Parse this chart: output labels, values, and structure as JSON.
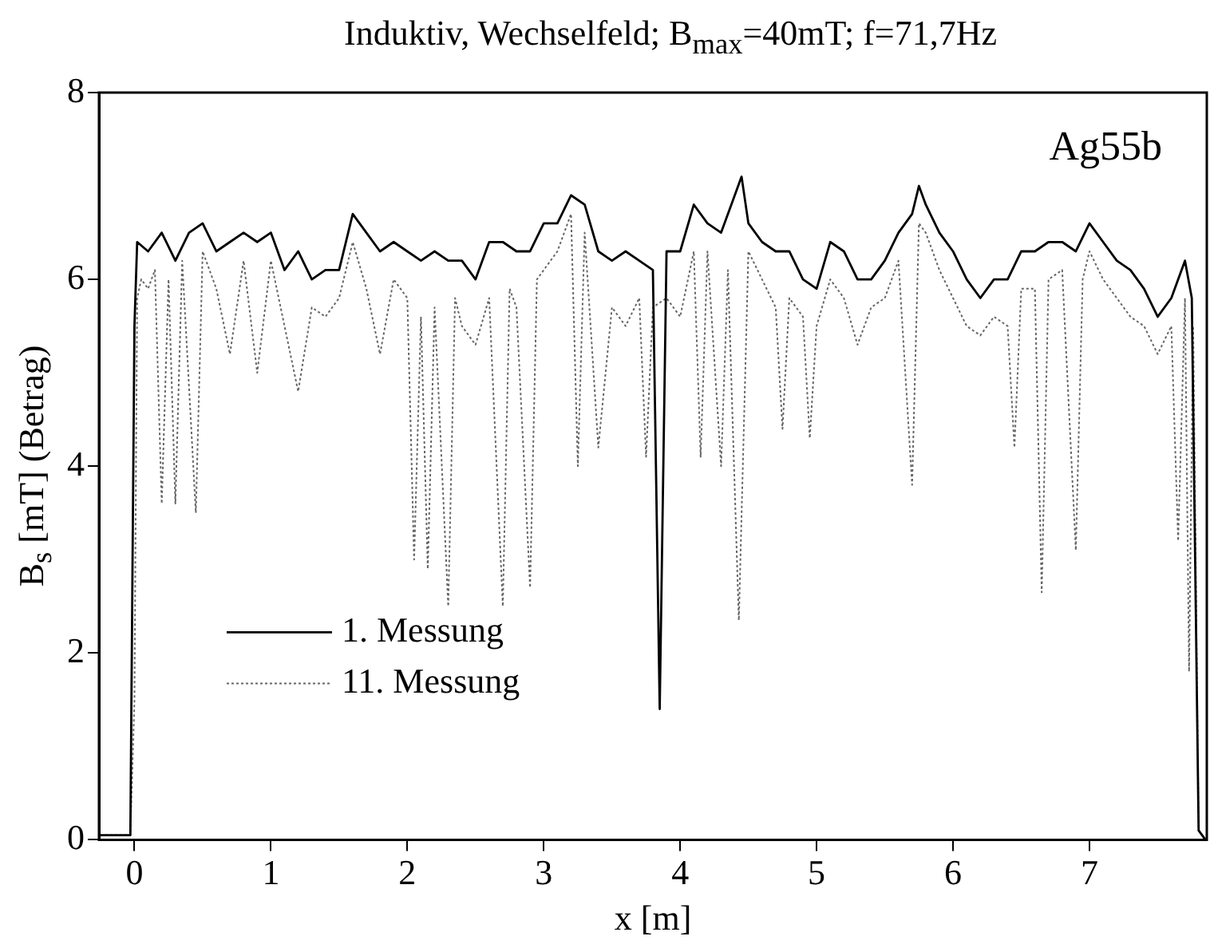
{
  "chart_data": {
    "type": "line",
    "title": "Induktiv, Wechselfeld; B$_{max}$=40mT; f=71,7Hz",
    "xlabel": "x [m]",
    "ylabel": "B$_{s}$ [mT] (Betrag)",
    "annotations": [
      "Ag55b"
    ],
    "xlim": [
      -0.26,
      7.86
    ],
    "xticks": [
      0,
      1,
      2,
      3,
      4,
      5,
      6,
      7
    ],
    "ylim": [
      0,
      8
    ],
    "yticks": [
      0,
      2,
      4,
      6,
      8
    ],
    "grid": false,
    "legend": "bottom left",
    "marker": "none",
    "series": [
      {
        "name": "1. Messung",
        "color": "#000000",
        "line_style": "solid",
        "x": [
          -0.25,
          -0.03,
          0,
          0.02,
          0.1,
          0.2,
          0.3,
          0.4,
          0.5,
          0.6,
          0.7,
          0.8,
          0.9,
          1.0,
          1.1,
          1.2,
          1.3,
          1.4,
          1.5,
          1.6,
          1.7,
          1.8,
          1.9,
          2.0,
          2.1,
          2.2,
          2.3,
          2.4,
          2.5,
          2.6,
          2.7,
          2.8,
          2.9,
          3.0,
          3.1,
          3.2,
          3.3,
          3.4,
          3.5,
          3.6,
          3.7,
          3.8,
          3.85,
          3.9,
          4.0,
          4.1,
          4.2,
          4.3,
          4.4,
          4.45,
          4.5,
          4.6,
          4.7,
          4.8,
          4.9,
          5.0,
          5.1,
          5.2,
          5.3,
          5.4,
          5.5,
          5.6,
          5.7,
          5.75,
          5.8,
          5.9,
          6.0,
          6.1,
          6.2,
          6.3,
          6.4,
          6.5,
          6.6,
          6.7,
          6.8,
          6.9,
          7.0,
          7.1,
          7.2,
          7.3,
          7.4,
          7.5,
          7.6,
          7.7,
          7.75,
          7.8,
          7.85
        ],
        "values": [
          0.05,
          0.05,
          5.5,
          6.4,
          6.3,
          6.5,
          6.2,
          6.5,
          6.6,
          6.3,
          6.4,
          6.5,
          6.4,
          6.5,
          6.1,
          6.3,
          6.0,
          6.1,
          6.1,
          6.7,
          6.5,
          6.3,
          6.4,
          6.3,
          6.2,
          6.3,
          6.2,
          6.2,
          6.0,
          6.4,
          6.4,
          6.3,
          6.3,
          6.6,
          6.6,
          6.9,
          6.8,
          6.3,
          6.2,
          6.3,
          6.2,
          6.1,
          1.4,
          6.3,
          6.3,
          6.8,
          6.6,
          6.5,
          6.9,
          7.1,
          6.6,
          6.4,
          6.3,
          6.3,
          6.0,
          5.9,
          6.4,
          6.3,
          6.0,
          6.0,
          6.2,
          6.5,
          6.7,
          7.0,
          6.8,
          6.5,
          6.3,
          6.0,
          5.8,
          6.0,
          6.0,
          6.3,
          6.3,
          6.4,
          6.4,
          6.3,
          6.6,
          6.4,
          6.2,
          6.1,
          5.9,
          5.6,
          5.8,
          6.2,
          5.8,
          0.1,
          0
        ]
      },
      {
        "name": "11. Messung",
        "color": "#666666",
        "line_style": "dotted",
        "x": [
          -0.25,
          -0.03,
          0,
          0.02,
          0.05,
          0.1,
          0.15,
          0.2,
          0.25,
          0.3,
          0.35,
          0.45,
          0.5,
          0.6,
          0.7,
          0.8,
          0.9,
          1.0,
          1.1,
          1.2,
          1.3,
          1.4,
          1.5,
          1.6,
          1.7,
          1.8,
          1.9,
          2.0,
          2.05,
          2.1,
          2.15,
          2.2,
          2.3,
          2.35,
          2.4,
          2.5,
          2.6,
          2.7,
          2.75,
          2.8,
          2.9,
          2.95,
          3.0,
          3.1,
          3.2,
          3.25,
          3.3,
          3.4,
          3.5,
          3.6,
          3.7,
          3.75,
          3.8,
          3.9,
          4.0,
          4.1,
          4.15,
          4.2,
          4.3,
          4.35,
          4.43,
          4.5,
          4.6,
          4.7,
          4.75,
          4.8,
          4.9,
          4.95,
          5.0,
          5.1,
          5.2,
          5.3,
          5.4,
          5.5,
          5.6,
          5.7,
          5.75,
          5.8,
          5.9,
          6.0,
          6.1,
          6.2,
          6.3,
          6.4,
          6.45,
          6.5,
          6.6,
          6.65,
          6.7,
          6.8,
          6.9,
          6.95,
          7.0,
          7.1,
          7.2,
          7.3,
          7.4,
          7.5,
          7.6,
          7.65,
          7.7,
          7.73,
          7.76,
          7.8,
          7.85
        ],
        "values": [
          0.05,
          0.05,
          1.5,
          5.8,
          6.0,
          5.9,
          6.1,
          3.6,
          6.0,
          3.6,
          6.2,
          3.5,
          6.3,
          5.9,
          5.2,
          6.2,
          5.0,
          6.2,
          5.5,
          4.8,
          5.7,
          5.6,
          5.8,
          6.4,
          5.9,
          5.2,
          6.0,
          5.8,
          3.0,
          5.6,
          2.9,
          5.7,
          2.5,
          5.8,
          5.5,
          5.3,
          5.8,
          2.5,
          5.9,
          5.7,
          2.7,
          6.0,
          6.1,
          6.3,
          6.7,
          4.0,
          6.5,
          4.2,
          5.7,
          5.5,
          5.8,
          4.1,
          5.7,
          5.8,
          5.6,
          6.3,
          4.1,
          6.3,
          4.0,
          6.1,
          2.35,
          6.3,
          6.0,
          5.7,
          4.4,
          5.8,
          5.6,
          4.3,
          5.5,
          6.0,
          5.8,
          5.3,
          5.7,
          5.8,
          6.2,
          3.8,
          6.6,
          6.5,
          6.1,
          5.8,
          5.5,
          5.4,
          5.6,
          5.5,
          4.2,
          5.9,
          5.9,
          2.65,
          6.0,
          6.1,
          3.1,
          6.0,
          6.3,
          6.0,
          5.8,
          5.6,
          5.5,
          5.2,
          5.5,
          3.2,
          5.8,
          1.8,
          5.5,
          0.1,
          0
        ]
      }
    ]
  }
}
